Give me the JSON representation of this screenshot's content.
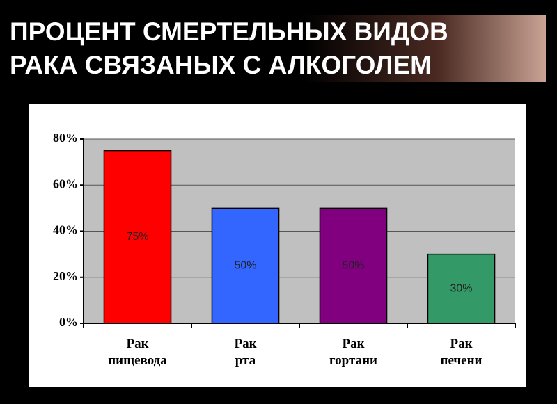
{
  "chart_data": {
    "type": "bar",
    "title": "ПРОЦЕНТ СМЕРТЕЛЬНЫХ ВИДОВ\nРАКА СВЯЗАНЫХ С АЛКОГОЛЕМ",
    "categories": [
      "Рак\nпищевода",
      "Рак\nрта",
      "Рак\nгортани",
      "Рак\nпечени"
    ],
    "values": [
      75,
      50,
      50,
      30
    ],
    "value_labels": [
      "75%",
      "50%",
      "50%",
      "30%"
    ],
    "colors": [
      "#ff0000",
      "#3366ff",
      "#800080",
      "#339966"
    ],
    "ylim": [
      0,
      80
    ],
    "yticks": [
      {
        "value": 0,
        "label": "0%"
      },
      {
        "value": 20,
        "label": "20%"
      },
      {
        "value": 40,
        "label": "40%"
      },
      {
        "value": 60,
        "label": "60%"
      },
      {
        "value": 80,
        "label": "80%"
      }
    ],
    "grid": true
  }
}
